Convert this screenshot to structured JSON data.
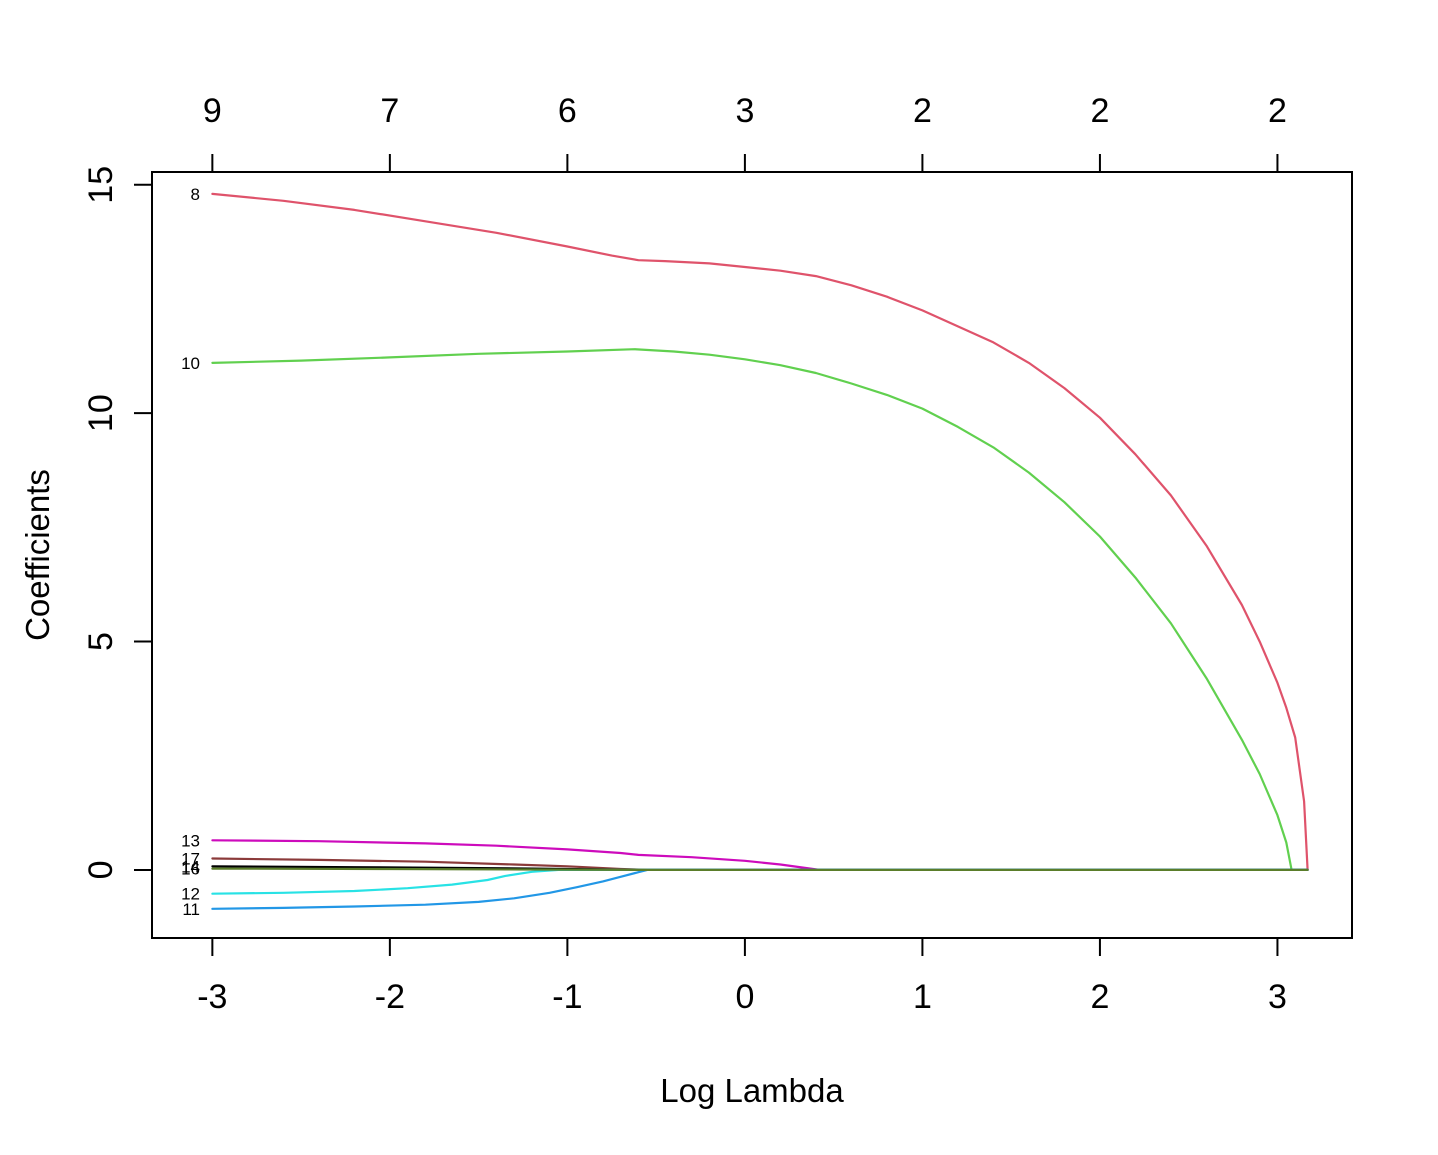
{
  "chart_data": {
    "type": "line",
    "title": "",
    "xlabel": "Log Lambda",
    "ylabel": "Coefficients",
    "xlim": [
      -3.34,
      3.42
    ],
    "ylim": [
      -1.49,
      15.28
    ],
    "grid": false,
    "legend_position": "none",
    "x_ticks": [
      -3,
      -2,
      -1,
      0,
      1,
      2,
      3
    ],
    "x_tick_labels": [
      "-3",
      "-2",
      "-1",
      "0",
      "1",
      "2",
      "3"
    ],
    "y_ticks": [
      0,
      5,
      10,
      15
    ],
    "y_tick_labels": [
      "0",
      "5",
      "10",
      "15"
    ],
    "top_axis_ticks": [
      -3,
      -2,
      -1,
      0,
      1,
      2,
      3
    ],
    "top_axis_labels": [
      "9",
      "7",
      "6",
      "3",
      "2",
      "2",
      "2"
    ],
    "series": [
      {
        "name": "8",
        "color": "#DF536B",
        "label_y": 14.8,
        "points": [
          [
            -3.0,
            14.8
          ],
          [
            -2.6,
            14.65
          ],
          [
            -2.2,
            14.45
          ],
          [
            -1.8,
            14.2
          ],
          [
            -1.4,
            13.95
          ],
          [
            -1.0,
            13.65
          ],
          [
            -0.75,
            13.45
          ],
          [
            -0.6,
            13.35
          ],
          [
            -0.45,
            13.33
          ],
          [
            -0.2,
            13.28
          ],
          [
            0.0,
            13.2
          ],
          [
            0.2,
            13.12
          ],
          [
            0.4,
            13.0
          ],
          [
            0.6,
            12.8
          ],
          [
            0.8,
            12.55
          ],
          [
            1.0,
            12.25
          ],
          [
            1.2,
            11.9
          ],
          [
            1.4,
            11.55
          ],
          [
            1.6,
            11.1
          ],
          [
            1.8,
            10.55
          ],
          [
            2.0,
            9.9
          ],
          [
            2.2,
            9.1
          ],
          [
            2.4,
            8.2
          ],
          [
            2.6,
            7.1
          ],
          [
            2.8,
            5.8
          ],
          [
            2.9,
            5.0
          ],
          [
            3.0,
            4.1
          ],
          [
            3.05,
            3.55
          ],
          [
            3.1,
            2.9
          ],
          [
            3.15,
            1.5
          ],
          [
            3.17,
            0.0
          ]
        ]
      },
      {
        "name": "10",
        "color": "#61D04F",
        "label_y": 11.1,
        "points": [
          [
            -3.0,
            11.1
          ],
          [
            -2.5,
            11.15
          ],
          [
            -2.0,
            11.22
          ],
          [
            -1.5,
            11.3
          ],
          [
            -1.0,
            11.35
          ],
          [
            -0.62,
            11.4
          ],
          [
            -0.4,
            11.35
          ],
          [
            -0.2,
            11.28
          ],
          [
            0.0,
            11.18
          ],
          [
            0.2,
            11.05
          ],
          [
            0.4,
            10.88
          ],
          [
            0.6,
            10.65
          ],
          [
            0.8,
            10.4
          ],
          [
            1.0,
            10.1
          ],
          [
            1.2,
            9.7
          ],
          [
            1.4,
            9.25
          ],
          [
            1.6,
            8.7
          ],
          [
            1.8,
            8.05
          ],
          [
            2.0,
            7.3
          ],
          [
            2.2,
            6.4
          ],
          [
            2.4,
            5.4
          ],
          [
            2.6,
            4.2
          ],
          [
            2.8,
            2.85
          ],
          [
            2.9,
            2.1
          ],
          [
            3.0,
            1.2
          ],
          [
            3.05,
            0.6
          ],
          [
            3.08,
            0.0
          ],
          [
            3.17,
            0.0
          ]
        ]
      },
      {
        "name": "13",
        "color": "#CD0BBC",
        "label_y": 0.65,
        "points": [
          [
            -3.0,
            0.65
          ],
          [
            -2.4,
            0.63
          ],
          [
            -1.8,
            0.58
          ],
          [
            -1.4,
            0.53
          ],
          [
            -1.0,
            0.45
          ],
          [
            -0.7,
            0.37
          ],
          [
            -0.6,
            0.33
          ],
          [
            -0.3,
            0.28
          ],
          [
            0.0,
            0.2
          ],
          [
            0.2,
            0.12
          ],
          [
            0.42,
            0.0
          ],
          [
            3.17,
            0.0
          ]
        ]
      },
      {
        "name": "17",
        "color": "#8B3A3A",
        "label_y": 0.25,
        "points": [
          [
            -3.0,
            0.25
          ],
          [
            -2.4,
            0.22
          ],
          [
            -1.8,
            0.18
          ],
          [
            -1.3,
            0.12
          ],
          [
            -1.0,
            0.08
          ],
          [
            -0.7,
            0.02
          ],
          [
            -0.55,
            0.0
          ],
          [
            3.17,
            0.0
          ]
        ]
      },
      {
        "name": "14",
        "color": "#000000",
        "label_y": 0.08,
        "points": [
          [
            -3.0,
            0.08
          ],
          [
            -2.2,
            0.06
          ],
          [
            -1.5,
            0.04
          ],
          [
            -1.0,
            0.02
          ],
          [
            -0.6,
            0.0
          ],
          [
            3.17,
            0.0
          ]
        ]
      },
      {
        "name": "12",
        "color": "#28E2E5",
        "label_y": -0.52,
        "points": [
          [
            -3.0,
            -0.52
          ],
          [
            -2.6,
            -0.5
          ],
          [
            -2.2,
            -0.46
          ],
          [
            -1.9,
            -0.4
          ],
          [
            -1.65,
            -0.32
          ],
          [
            -1.45,
            -0.22
          ],
          [
            -1.35,
            -0.13
          ],
          [
            -1.2,
            -0.04
          ],
          [
            -1.05,
            0.0
          ],
          [
            3.17,
            0.0
          ]
        ]
      },
      {
        "name": "11",
        "color": "#2297E6",
        "label_y": -0.85,
        "points": [
          [
            -3.0,
            -0.85
          ],
          [
            -2.6,
            -0.83
          ],
          [
            -2.2,
            -0.8
          ],
          [
            -1.8,
            -0.76
          ],
          [
            -1.5,
            -0.7
          ],
          [
            -1.3,
            -0.62
          ],
          [
            -1.1,
            -0.5
          ],
          [
            -0.95,
            -0.38
          ],
          [
            -0.8,
            -0.25
          ],
          [
            -0.7,
            -0.15
          ],
          [
            -0.6,
            -0.05
          ],
          [
            -0.55,
            0.0
          ],
          [
            3.17,
            0.0
          ]
        ]
      },
      {
        "name": "16",
        "color": "#5A7D2A",
        "label_y": 0.03,
        "points": [
          [
            -3.0,
            0.03
          ],
          [
            -2.0,
            0.02
          ],
          [
            -1.2,
            0.01
          ],
          [
            -0.6,
            0.0
          ],
          [
            3.17,
            0.0
          ]
        ]
      }
    ]
  }
}
